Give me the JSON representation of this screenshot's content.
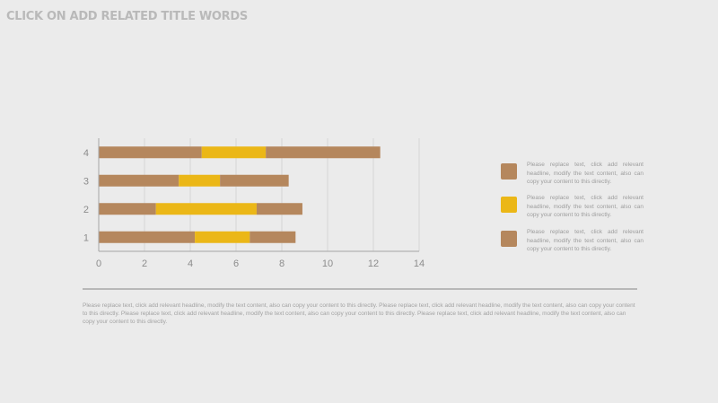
{
  "title": "CLICK ON ADD RELATED TITLE WORDS",
  "colors": {
    "primary": "#b5875d",
    "accent": "#ebb717",
    "axis": "#a6a6a6",
    "grid": "#d6d6d6"
  },
  "chart_data": {
    "type": "bar",
    "orientation": "horizontal",
    "stacked": true,
    "categories": [
      "1",
      "2",
      "3",
      "4"
    ],
    "series": [
      {
        "values": [
          4.2,
          2.5,
          3.5,
          4.5
        ],
        "color": "#b5875d"
      },
      {
        "values": [
          2.4,
          4.4,
          1.8,
          2.8
        ],
        "color": "#ebb717"
      },
      {
        "values": [
          2.0,
          2.0,
          3.0,
          5.0
        ],
        "color": "#b5875d"
      }
    ],
    "x_ticks": [
      "0",
      "2",
      "4",
      "6",
      "8",
      "10",
      "12",
      "14"
    ],
    "xlim": [
      0,
      14
    ],
    "grid": "vertical"
  },
  "legend": [
    {
      "text": "Please replace text, click add relevant headline, modify the text content, also can copy your content to this directly.",
      "color": "#b5875d"
    },
    {
      "text": "Please replace text, click add relevant headline, modify the text content, also can copy your content to this directly.",
      "color": "#ebb717"
    },
    {
      "text": "Please replace text, click add relevant headline, modify the text content, also can copy your content to this directly.",
      "color": "#b5875d"
    }
  ],
  "body_text": "Please replace text, click add relevant headline, modify the text content, also can copy your content to this directly. Please replace text, click add relevant headline, modify the text content, also can copy your content to this directly. Please replace text, click add relevant headline, modify the text content, also can copy your content to this directly. Please replace text, click add relevant headline, modify the text content, also can copy your content to this directly."
}
